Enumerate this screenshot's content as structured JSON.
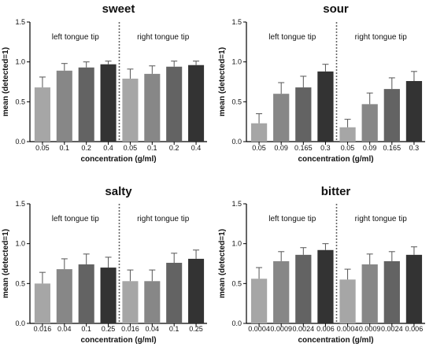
{
  "chart_data": [
    {
      "type": "bar",
      "title": "sweet",
      "xlabel": "concentration (g/ml)",
      "ylabel": "mean (detected=1)",
      "ylim": [
        0,
        1.5
      ],
      "yticks": [
        "0.0",
        "0.5",
        "1.0",
        "1.5"
      ],
      "groups": [
        "left tongue tip",
        "right tongue tip"
      ],
      "categories": [
        "0.05",
        "0.1",
        "0.2",
        "0.4",
        "0.05",
        "0.1",
        "0.2",
        "0.4"
      ],
      "values": [
        0.68,
        0.89,
        0.93,
        0.97,
        0.79,
        0.85,
        0.94,
        0.96
      ],
      "errors": [
        0.13,
        0.09,
        0.07,
        0.04,
        0.12,
        0.1,
        0.07,
        0.05
      ],
      "colors": [
        "#a6a6a6",
        "#878787",
        "#636363",
        "#333333",
        "#a6a6a6",
        "#878787",
        "#636363",
        "#333333"
      ]
    },
    {
      "type": "bar",
      "title": "sour",
      "xlabel": "concentration (g/ml)",
      "ylabel": "mean (detected=1)",
      "ylim": [
        0,
        1.5
      ],
      "yticks": [
        "0.0",
        "0.5",
        "1.0",
        "1.5"
      ],
      "groups": [
        "left tongue tip",
        "right tongue tip"
      ],
      "categories": [
        "0.05",
        "0.09",
        "0.165",
        "0.3",
        "0.05",
        "0.09",
        "0.165",
        "0.3"
      ],
      "values": [
        0.23,
        0.6,
        0.68,
        0.88,
        0.18,
        0.47,
        0.66,
        0.76
      ],
      "errors": [
        0.12,
        0.14,
        0.14,
        0.09,
        0.1,
        0.14,
        0.14,
        0.12
      ],
      "colors": [
        "#a6a6a6",
        "#878787",
        "#636363",
        "#333333",
        "#a6a6a6",
        "#878787",
        "#636363",
        "#333333"
      ]
    },
    {
      "type": "bar",
      "title": "salty",
      "xlabel": "concentration (g/ml)",
      "ylabel": "mean (detected=1)",
      "ylim": [
        0,
        1.5
      ],
      "yticks": [
        "0.0",
        "0.5",
        "1.0",
        "1.5"
      ],
      "groups": [
        "left tongue tip",
        "right tongue tip"
      ],
      "categories": [
        "0.016",
        "0.04",
        "0.1",
        "0.25",
        "0.016",
        "0.04",
        "0.1",
        "0.25"
      ],
      "values": [
        0.5,
        0.68,
        0.74,
        0.7,
        0.53,
        0.53,
        0.76,
        0.81
      ],
      "errors": [
        0.14,
        0.13,
        0.13,
        0.13,
        0.14,
        0.14,
        0.12,
        0.11
      ],
      "colors": [
        "#a6a6a6",
        "#878787",
        "#636363",
        "#333333",
        "#a6a6a6",
        "#878787",
        "#636363",
        "#333333"
      ]
    },
    {
      "type": "bar",
      "title": "bitter",
      "xlabel": "concentration (g/ml)",
      "ylabel": "mean (detected=1)",
      "ylim": [
        0,
        1.5
      ],
      "yticks": [
        "0.0",
        "0.5",
        "1.0",
        "1.5"
      ],
      "groups": [
        "left tongue tip",
        "right tongue tip"
      ],
      "categories": [
        "0.0004",
        "0.0009",
        "0.0024",
        "0.006",
        "0.0004",
        "0.0009",
        "0.0024",
        "0.006"
      ],
      "values": [
        0.56,
        0.78,
        0.86,
        0.92,
        0.55,
        0.74,
        0.78,
        0.86
      ],
      "errors": [
        0.14,
        0.12,
        0.09,
        0.08,
        0.13,
        0.13,
        0.12,
        0.1
      ],
      "colors": [
        "#a6a6a6",
        "#878787",
        "#636363",
        "#333333",
        "#a6a6a6",
        "#878787",
        "#636363",
        "#333333"
      ]
    }
  ]
}
